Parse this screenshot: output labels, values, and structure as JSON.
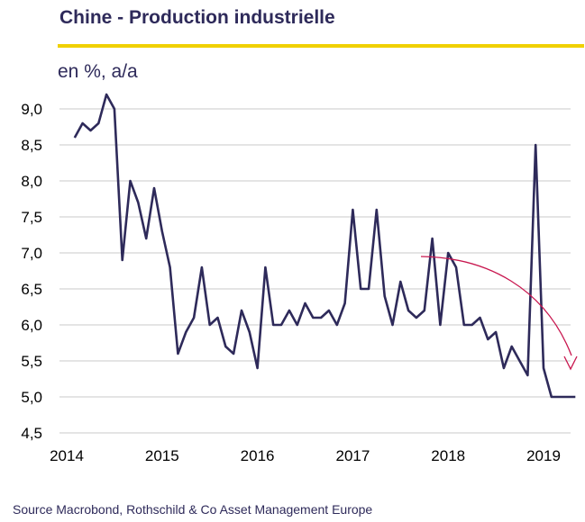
{
  "header": {
    "title": "Chine - Production industrielle",
    "unit": "en %, a/a"
  },
  "footer": {
    "source": "Source Macrobond,  Rothschild & Co Asset Management  Europe"
  },
  "colors": {
    "series": "#2e2a5a",
    "title_rule": "#f0d000",
    "trend_arrow": "#c8174f",
    "grid": "#c8c8c8"
  },
  "chart_data": {
    "type": "line",
    "title": "Chine - Production industrielle",
    "ylabel": "en %, a/a",
    "xlabel": "",
    "ylim": [
      4.5,
      9.0
    ],
    "yticks": [
      "4,5",
      "5,0",
      "5,5",
      "6,0",
      "6,5",
      "7,0",
      "7,5",
      "8,0",
      "8,5",
      "9,0"
    ],
    "ytick_values": [
      4.5,
      5.0,
      5.5,
      6.0,
      6.5,
      7.0,
      7.5,
      8.0,
      8.5,
      9.0
    ],
    "xticks": [
      "2014",
      "2015",
      "2016",
      "2017",
      "2018",
      "2019"
    ],
    "xtick_values": [
      "2014-01",
      "2015-01",
      "2016-01",
      "2017-01",
      "2018-01",
      "2019-01"
    ],
    "grid": "horizontal",
    "series": [
      {
        "x": [
          "2014-02",
          "2014-03",
          "2014-04",
          "2014-05",
          "2014-06",
          "2014-07",
          "2014-08",
          "2014-09",
          "2014-10",
          "2014-11",
          "2014-12",
          "2015-01",
          "2015-02",
          "2015-03",
          "2015-04",
          "2015-05",
          "2015-06",
          "2015-07",
          "2015-08",
          "2015-09",
          "2015-10",
          "2015-11",
          "2015-12",
          "2016-01",
          "2016-02",
          "2016-03",
          "2016-04",
          "2016-05",
          "2016-06",
          "2016-07",
          "2016-08",
          "2016-09",
          "2016-10",
          "2016-11",
          "2016-12",
          "2017-01",
          "2017-02",
          "2017-03",
          "2017-04",
          "2017-05",
          "2017-06",
          "2017-07",
          "2017-08",
          "2017-09",
          "2017-10",
          "2017-11",
          "2017-12",
          "2018-01",
          "2018-02",
          "2018-03",
          "2018-04",
          "2018-05",
          "2018-06",
          "2018-07",
          "2018-08",
          "2018-09",
          "2018-10",
          "2018-11",
          "2018-12",
          "2019-01",
          "2019-02",
          "2019-03",
          "2019-04",
          "2019-05"
        ],
        "values": [
          8.6,
          8.8,
          8.7,
          8.8,
          9.2,
          9.0,
          6.9,
          8.0,
          7.7,
          7.2,
          7.9,
          7.3,
          6.8,
          5.6,
          5.9,
          6.1,
          6.8,
          6.0,
          6.1,
          5.7,
          5.6,
          6.2,
          5.9,
          5.4,
          6.8,
          6.0,
          6.0,
          6.2,
          6.0,
          6.3,
          6.1,
          6.1,
          6.2,
          6.0,
          6.3,
          7.6,
          6.5,
          6.5,
          7.6,
          6.4,
          6.0,
          6.6,
          6.2,
          6.1,
          6.2,
          7.2,
          6.0,
          7.0,
          6.8,
          6.0,
          6.0,
          6.1,
          5.8,
          5.9,
          5.4,
          5.7,
          5.5,
          5.3,
          8.5,
          5.4,
          5.0,
          5.0,
          5.0,
          5.0
        ]
      }
    ]
  }
}
